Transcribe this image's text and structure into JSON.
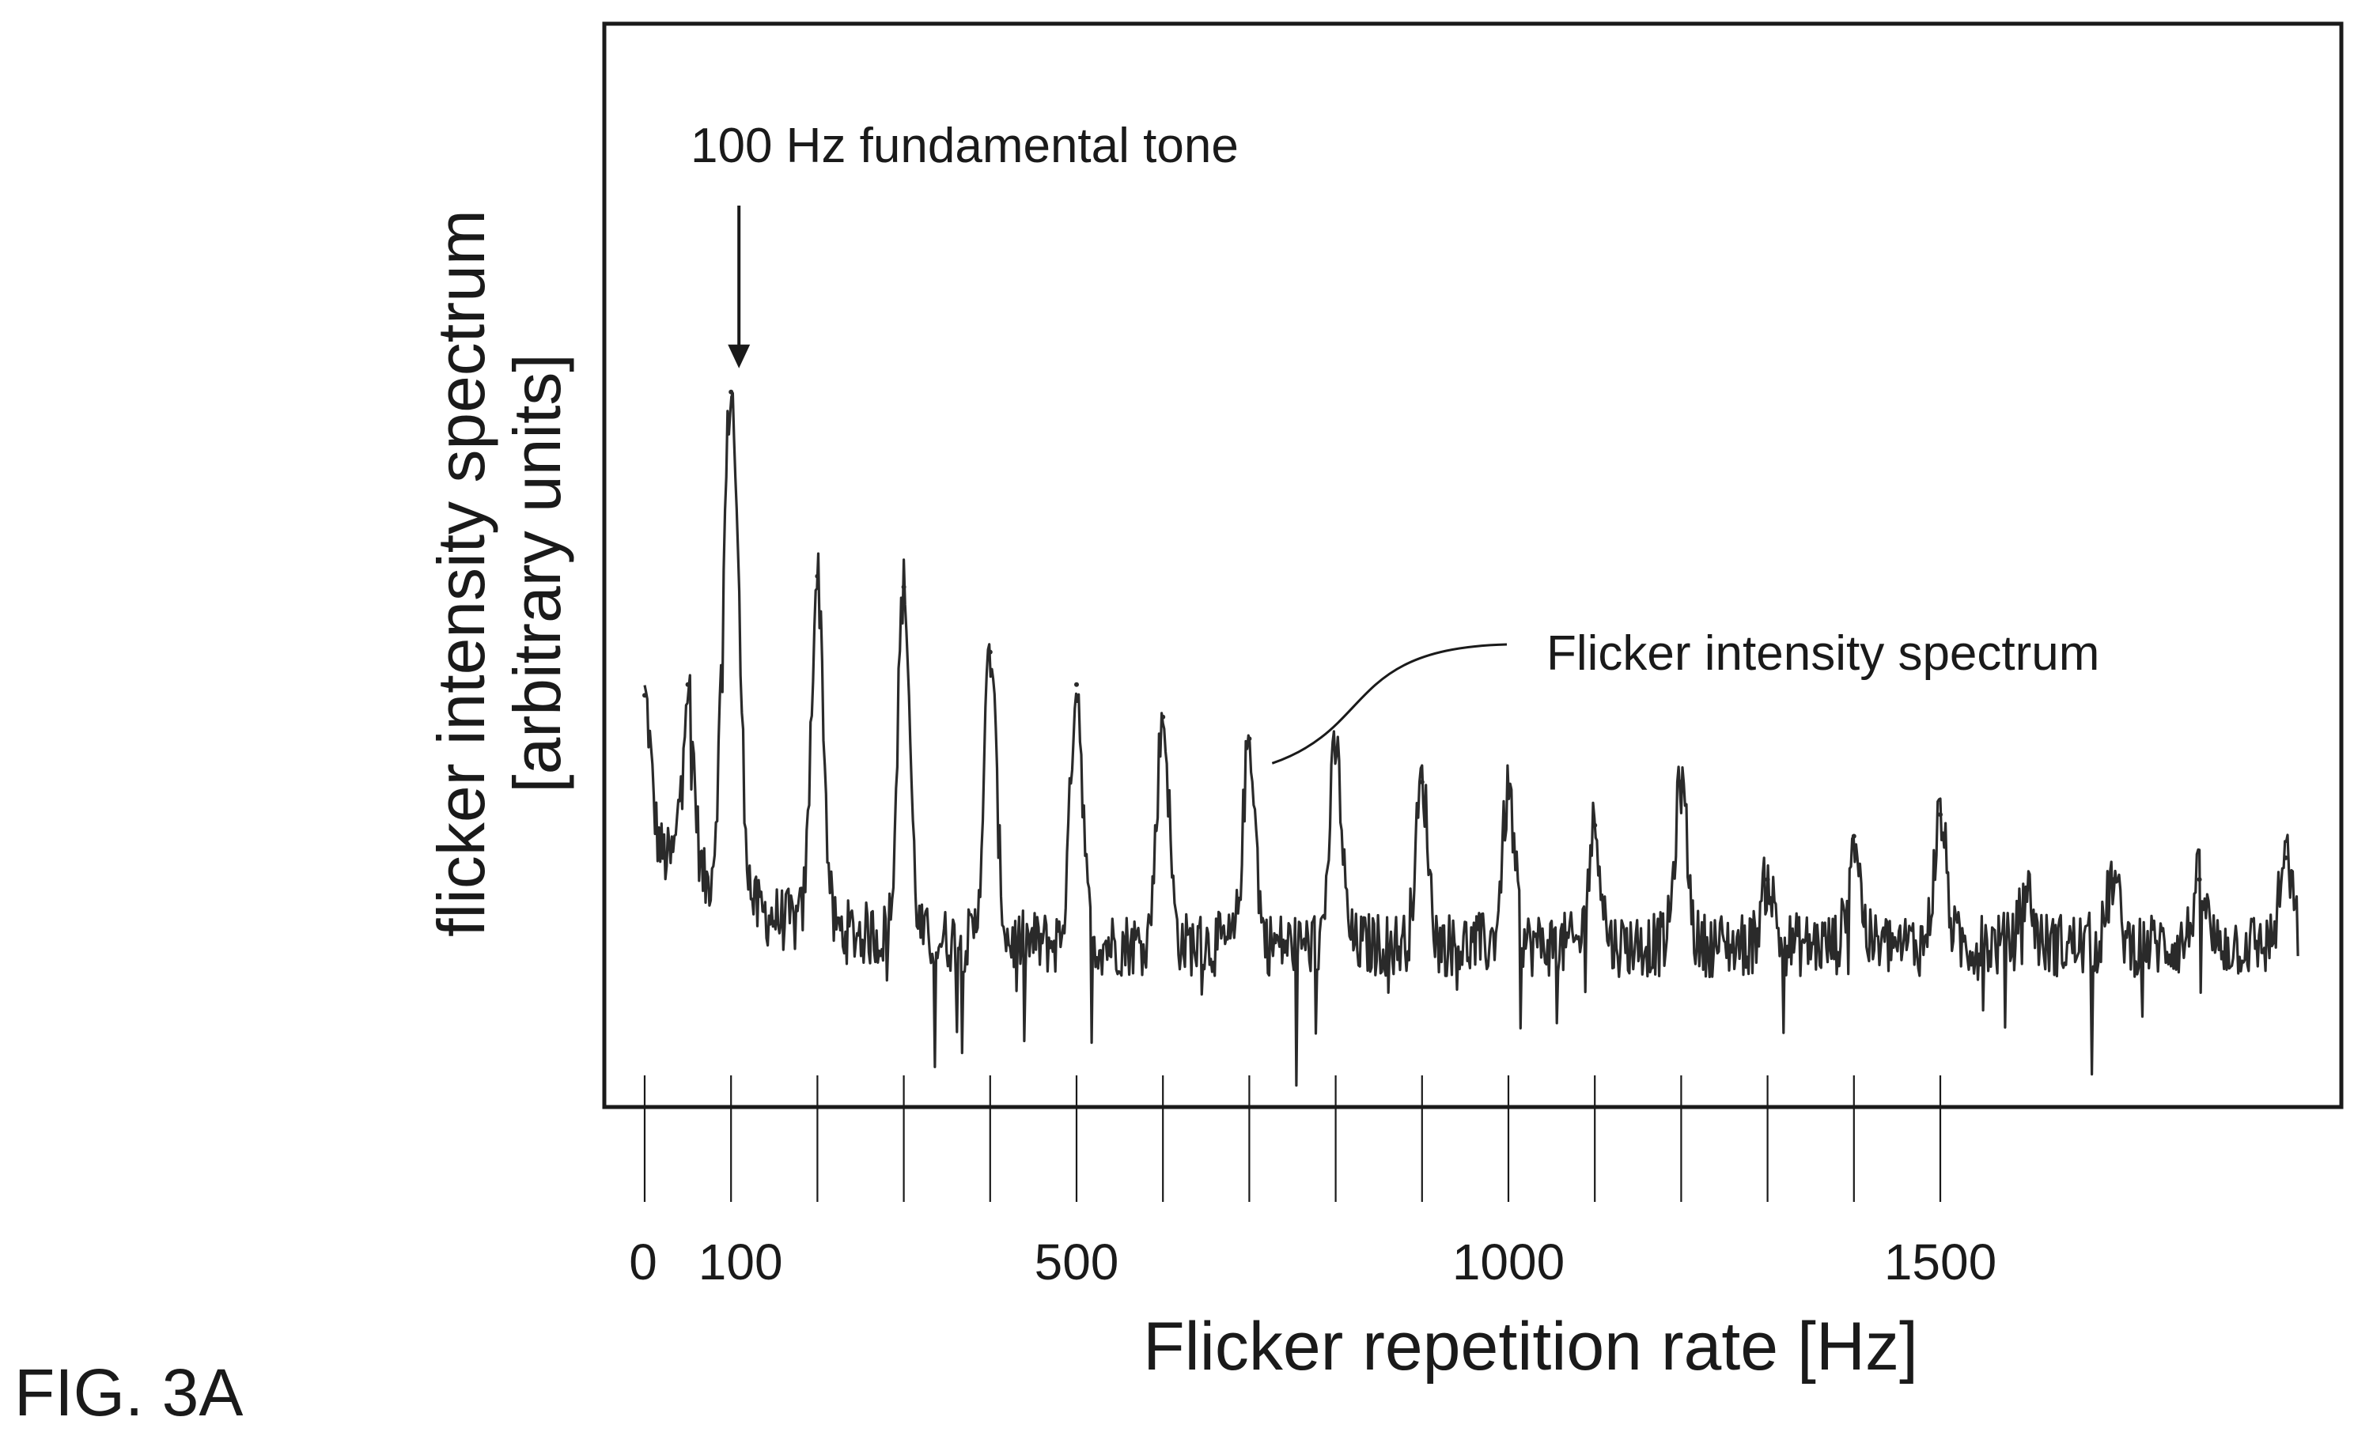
{
  "figure_label": "FIG. 3A",
  "chart_data": {
    "type": "line",
    "xlabel": "Flicker repetition rate [Hz]",
    "ylabel_line1": "flicker intensity spectrum",
    "ylabel_line2": "[arbitrary units]",
    "xlim": [
      0,
      1920
    ],
    "ylim": [
      0,
      100
    ],
    "x_tick_values": [
      0,
      100,
      200,
      300,
      400,
      500,
      600,
      700,
      800,
      900,
      1000,
      1100,
      1200,
      1300,
      1400,
      1500
    ],
    "x_tick_labels": [
      {
        "value": 0,
        "label": "0"
      },
      {
        "value": 100,
        "label": "100"
      },
      {
        "value": 500,
        "label": "500"
      },
      {
        "value": 1000,
        "label": "1000"
      },
      {
        "value": 1500,
        "label": "1500"
      }
    ],
    "annotations": [
      {
        "text": "100 Hz fundamental tone",
        "x": 100,
        "y": 66,
        "kind": "arrow"
      },
      {
        "text": "Flicker intensity spectrum",
        "x": 710,
        "y": 31,
        "kind": "leader-curve"
      }
    ],
    "grid": false,
    "series": [
      {
        "baseline": 15,
        "peaks": [
          {
            "x": 0,
            "y": 38
          },
          {
            "x": 50,
            "y": 39
          },
          {
            "x": 100,
            "y": 66
          },
          {
            "x": 200,
            "y": 49
          },
          {
            "x": 300,
            "y": 48
          },
          {
            "x": 400,
            "y": 42
          },
          {
            "x": 500,
            "y": 39
          },
          {
            "x": 600,
            "y": 36
          },
          {
            "x": 700,
            "y": 34
          },
          {
            "x": 800,
            "y": 33
          },
          {
            "x": 900,
            "y": 30
          },
          {
            "x": 1000,
            "y": 29
          },
          {
            "x": 1100,
            "y": 26
          },
          {
            "x": 1200,
            "y": 30
          },
          {
            "x": 1300,
            "y": 21
          },
          {
            "x": 1400,
            "y": 25
          },
          {
            "x": 1500,
            "y": 27
          },
          {
            "x": 1600,
            "y": 20
          },
          {
            "x": 1700,
            "y": 21
          },
          {
            "x": 1800,
            "y": 21
          },
          {
            "x": 1900,
            "y": 23
          }
        ]
      }
    ]
  },
  "colors": {
    "trace": "#2a2a2a",
    "axes": "#1a1a1a",
    "text": "#1a1a1a"
  }
}
